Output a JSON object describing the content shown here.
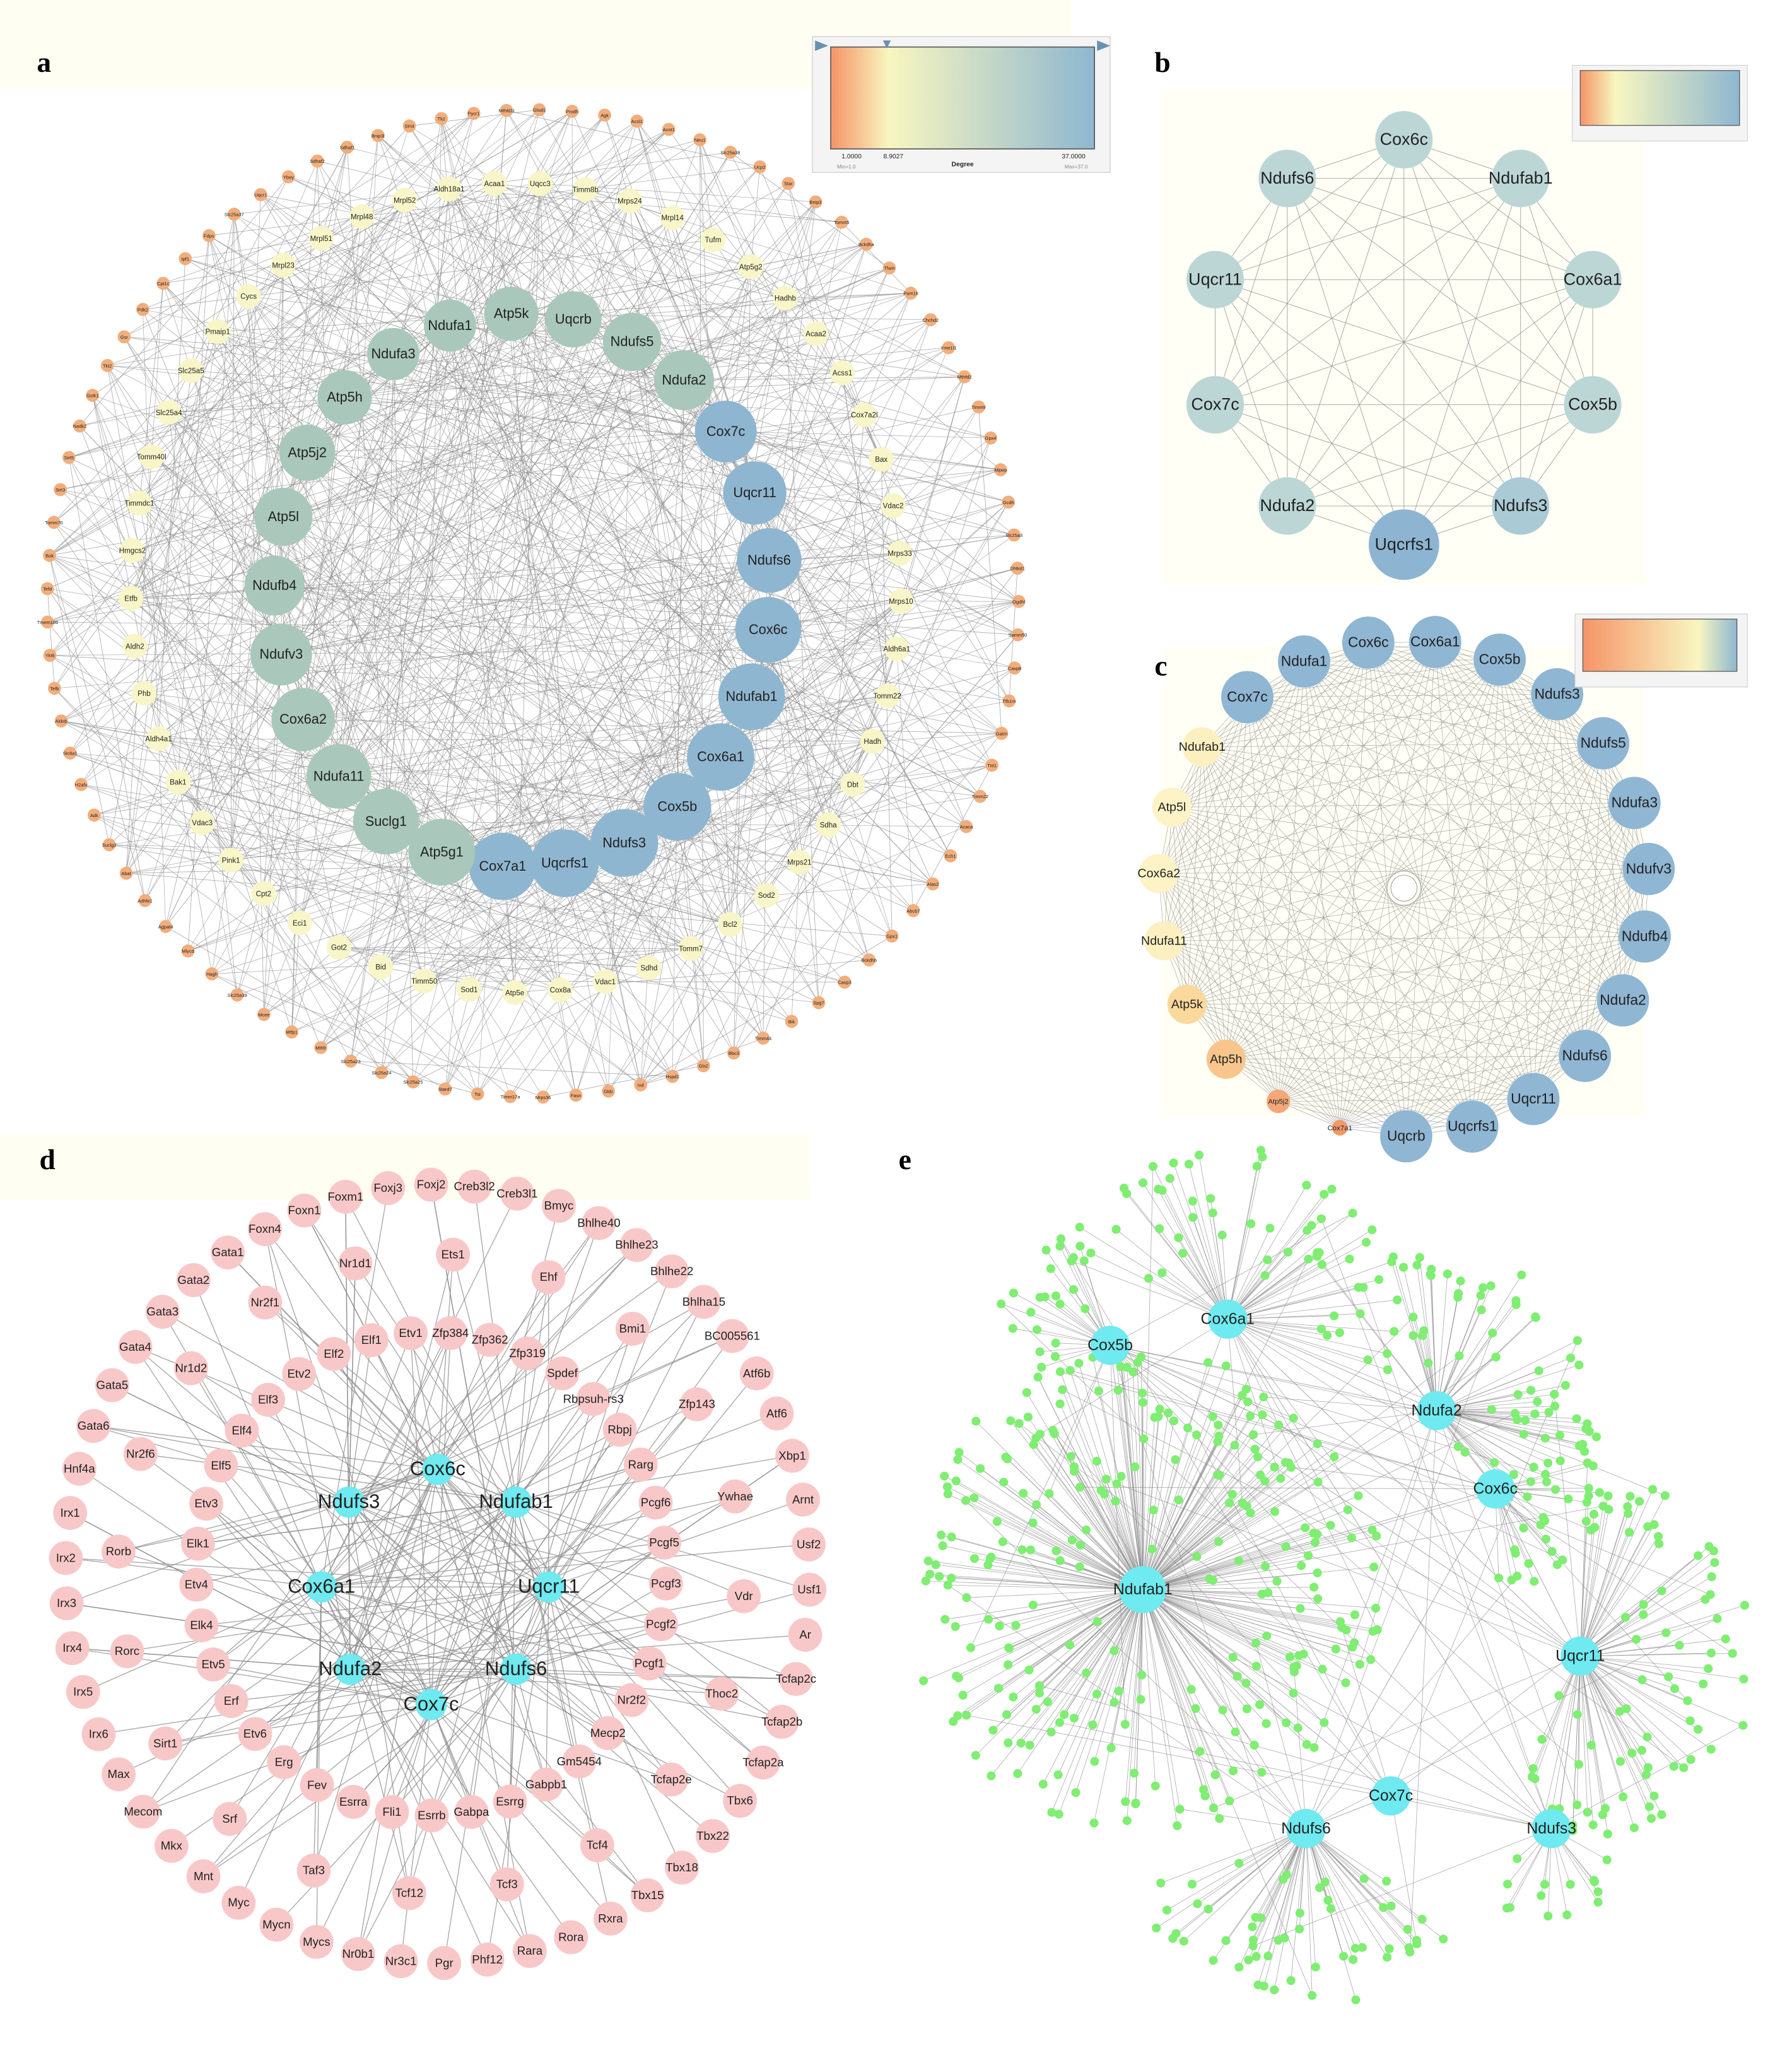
{
  "panel_a": {
    "label": "a",
    "legend": {
      "min_label": "1.0000",
      "mid_label": "8.9027",
      "max_label": "37.0000",
      "title": "Degree",
      "min_note": "Min=1.0",
      "max_note": "Max=37.0"
    },
    "colors": {
      "inner": "#a9c8bb",
      "hub": "#8fb6d0",
      "middle": "#f8f6c8",
      "outer": "#f1ae7c"
    },
    "inner_nodes": [
      "Ndufa1",
      "Atp5k",
      "Uqcrb",
      "Ndufs5",
      "Ndufa2",
      "Cox7c",
      "Uqcr11",
      "Ndufs6",
      "Cox6c",
      "Ndufab1",
      "Cox6a1",
      "Cox5b",
      "Ndufs3",
      "Uqcrfs1",
      "Cox7a1",
      "Atp5g1",
      "Suclg1",
      "Ndufa11",
      "Cox6a2",
      "Ndufv3",
      "Ndufb4",
      "Atp5l",
      "Atp5j2",
      "Atp5h",
      "Ndufa3"
    ],
    "middle_nodes": [
      "Aldh18a1",
      "Acaa1",
      "Uqcc3",
      "Timm8b",
      "Mrps24",
      "Mrpl14",
      "Tufm",
      "Atp5g2",
      "Hadhb",
      "Acaa2",
      "Acss1",
      "Cox7a2l",
      "Bax",
      "Vdac2",
      "Mrps33",
      "Mrps10",
      "Aldh6a1",
      "Tomm22",
      "Hadh",
      "Dbt",
      "Sdha",
      "Mrps21",
      "Sod2",
      "Bcl2",
      "Tomm7",
      "Sdhd",
      "Vdac1",
      "Cox8a",
      "Atp5e",
      "Sod1",
      "Timm50",
      "Bid",
      "Got2",
      "Eci1",
      "Cpt2",
      "Pink1",
      "Vdac3",
      "Bak1",
      "Aldh4a1",
      "Phb",
      "Aldh2",
      "Etfb",
      "Hmgcs2",
      "Timmdc1",
      "Tomm40l",
      "Slc25a4",
      "Slc25a5",
      "Pmaip1",
      "Cycs",
      "Mrpl23",
      "Mrpl51",
      "Mrpl48",
      "Mrpl52"
    ],
    "outer_nodes": [
      "Pycr1",
      "Mthfd1l",
      "Glud1",
      "Prodh",
      "Agk",
      "Acsl1",
      "Acot1",
      "Neu1",
      "Slc25a38",
      "Ucp2",
      "Star",
      "Bnip3",
      "Tomm5",
      "Bckdha",
      "Tfam",
      "Pam16",
      "Chchd2",
      "Yme1l1",
      "Mthfd2",
      "Timm9",
      "Gpx4",
      "Mipep",
      "Gcdh",
      "Slc25a3",
      "Dhtkd1",
      "Ogdhl",
      "Samm50",
      "Casp8",
      "Tfb1m",
      "Gatm",
      "Trit1",
      "Timm22",
      "Acaca",
      "Ech1",
      "Alas2",
      "Abcb7",
      "Gpx1",
      "Bckdhb",
      "Casp3",
      "Spg7",
      "Bik",
      "Timm44",
      "Bbc3",
      "Gls2",
      "Hspd1",
      "Ivd",
      "Gldc",
      "Fasn",
      "Mrps36",
      "Timm17a",
      "Tst",
      "Stard7",
      "Slc25a25",
      "Slc25a24",
      "Slc25a23",
      "Mthfr",
      "Mtfp1",
      "Mcee",
      "Slc25a39",
      "Hagh",
      "Mlycd",
      "Agpat4",
      "Adhfe1",
      "Abat",
      "Suclg2",
      "Adk",
      "H2afx",
      "Slc8a1",
      "Aldob",
      "Tefb",
      "Ykt6",
      "Tmem186",
      "Tefd",
      "Bok",
      "Tomm70",
      "Sirt3",
      "Sirt5",
      "Nadk2",
      "Gstk1",
      "Tkt2",
      "Gsr",
      "Pdk2",
      "Cpt1c",
      "Ipf1",
      "Fdps",
      "Slc25a37",
      "Uqcr1",
      "Ybey",
      "Sdhaf2",
      "Sdhaf1",
      "Bnip3l",
      "Sirt4",
      "Tk2"
    ]
  },
  "panel_b": {
    "label": "b",
    "nodes": [
      "Cox6c",
      "Ndufab1",
      "Cox6a1",
      "Cox5b",
      "Ndufs3",
      "Uqcrfs1",
      "Ndufa2",
      "Cox7c",
      "Uqcr11",
      "Ndufs6"
    ],
    "colors": [
      "#bcd6d6",
      "#bcd6d6",
      "#bcd6d6",
      "#bcd6d6",
      "#aacbd6",
      "#8db5d2",
      "#bcd6d6",
      "#bcd6d6",
      "#bcd6d6",
      "#bcd6d6"
    ]
  },
  "panel_c": {
    "label": "c",
    "nodes": [
      "Ndufa1",
      "Cox6c",
      "Cox6a1",
      "Cox5b",
      "Ndufs3",
      "Ndufs5",
      "Ndufa3",
      "Ndufv3",
      "Ndufb4",
      "Ndufa2",
      "Ndufs6",
      "Uqcr11",
      "Uqcrfs1",
      "Uqcrb",
      "Cox7a1",
      "Atp5j2",
      "Atp5h",
      "Atp5k",
      "Ndufa11",
      "Cox6a2",
      "Atp5l",
      "Ndufab1",
      "Cox7c"
    ],
    "colors": [
      "#8fb6d3",
      "#8fb6d3",
      "#8fb6d3",
      "#8fb6d3",
      "#8fb6d3",
      "#8fb6d3",
      "#8fb6d3",
      "#8fb6d3",
      "#8fb6d3",
      "#8fb6d3",
      "#8fb6d3",
      "#8fb6d3",
      "#8fb6d3",
      "#8fb6d3",
      "#f09a68",
      "#f4a877",
      "#f8c68c",
      "#fbd89b",
      "#fdf0c0",
      "#fdf3c6",
      "#fdf3c6",
      "#fdf0c0",
      "#8fb6d3"
    ]
  },
  "panel_d": {
    "label": "d",
    "hub_color": "#6eeaf0",
    "tf_color": "#f8c8c8",
    "hubs": [
      "Cox6c",
      "Ndufs3",
      "Ndufab1",
      "Cox6a1",
      "Uqcr11",
      "Ndufa2",
      "Ndufs6",
      "Cox7c"
    ],
    "inner_ring": [
      "Etv1",
      "Zfp384",
      "Zfp362",
      "Zfp319",
      "Spdef",
      "Rbpsuh-rs3",
      "Rbpj",
      "Rarg",
      "Pcgf6",
      "Pcgf5",
      "Pcgf3",
      "Pcgf2",
      "Pcgf1",
      "Nr2f2",
      "Mecp2",
      "Gm5454",
      "Gabpb1",
      "Esrrg",
      "Gabpa",
      "Esrrb",
      "Fli1",
      "Esrra",
      "Fev",
      "Erg",
      "Etv6",
      "Erf",
      "Etv5",
      "Elk4",
      "Etv4",
      "Elk1",
      "Etv3",
      "Elf5",
      "Elf4",
      "Elf3",
      "Etv2",
      "Elf2",
      "Elf1"
    ],
    "middle_ring": [
      "Ehf",
      "Bmi1",
      "Zfp143",
      "Ywhae",
      "Vdr",
      "Thoc2",
      "Tcfap2e",
      "Tcf4",
      "Tcf3",
      "Tcf12",
      "Taf3",
      "Srf",
      "Sirt1",
      "Rorc",
      "Rorb",
      "Nr2f6",
      "Nr1d2",
      "Nr2f1",
      "Nr1d1",
      "Ets1"
    ],
    "outer_ring": [
      "Foxj2",
      "Creb3l2",
      "Creb3l1",
      "Bmyc",
      "Bhlhe40",
      "Bhlhe23",
      "Bhlhe22",
      "Bhlha15",
      "BC005561",
      "Atf6b",
      "Atf6",
      "Xbp1",
      "Arnt",
      "Usf2",
      "Usf1",
      "Ar",
      "Tcfap2c",
      "Tcfap2b",
      "Tcfap2a",
      "Tbx6",
      "Tbx22",
      "Tbx18",
      "Tbx15",
      "Rxra",
      "Rora",
      "Rara",
      "Phf12",
      "Pgr",
      "Nr3c1",
      "Nr0b1",
      "Mycs",
      "Mycn",
      "Myc",
      "Mnt",
      "Mkx",
      "Mecom",
      "Max",
      "Irx6",
      "Irx5",
      "Irx4",
      "Irx3",
      "Irx2",
      "Irx1",
      "Hnf4a",
      "Gata6",
      "Gata5",
      "Gata4",
      "Gata3",
      "Gata2",
      "Gata1",
      "Foxn4",
      "Foxn1",
      "Foxm1",
      "Foxj3"
    ]
  },
  "panel_e": {
    "label": "e",
    "hub_color": "#6eeaf0",
    "mirna_color": "#7fee72",
    "hubs": [
      "Cox6a1",
      "Cox5b",
      "Ndufa2",
      "Cox6c",
      "Ndufab1",
      "Uqcr11",
      "Cox7c",
      "Ndufs6",
      "Ndufs3"
    ]
  }
}
